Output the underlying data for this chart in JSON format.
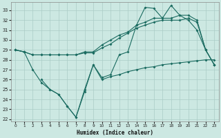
{
  "xlabel": "Humidex (Indice chaleur)",
  "bg_color": "#cce8e2",
  "grid_color": "#aaccc6",
  "line_color": "#1a6b60",
  "xlim": [
    -0.5,
    23.5
  ],
  "ylim": [
    21.8,
    33.8
  ],
  "yticks": [
    22,
    23,
    24,
    25,
    26,
    27,
    28,
    29,
    30,
    31,
    32,
    33
  ],
  "xticks": [
    0,
    1,
    2,
    3,
    4,
    5,
    6,
    7,
    8,
    9,
    10,
    11,
    12,
    13,
    14,
    15,
    16,
    17,
    18,
    19,
    20,
    21,
    22,
    23
  ],
  "series": [
    {
      "x": [
        0,
        1,
        2,
        3,
        4,
        5,
        6,
        7,
        8,
        9,
        10,
        11,
        12,
        13,
        14,
        15,
        16,
        17,
        18,
        19,
        20,
        21,
        22,
        23
      ],
      "y": [
        29.0,
        28.8,
        28.5,
        28.5,
        28.5,
        28.5,
        28.5,
        28.5,
        28.7,
        28.7,
        29.2,
        29.6,
        30.2,
        30.7,
        31.2,
        31.5,
        31.8,
        32.0,
        32.0,
        32.0,
        32.2,
        31.8,
        29.0,
        27.5
      ]
    },
    {
      "x": [
        0,
        1,
        2,
        3,
        4,
        5,
        6,
        7,
        8,
        9,
        10,
        11,
        12,
        13,
        14,
        15,
        16,
        17,
        18,
        19,
        20,
        21,
        22,
        23
      ],
      "y": [
        29.0,
        28.8,
        28.5,
        28.5,
        28.5,
        28.5,
        28.5,
        28.5,
        28.8,
        28.8,
        29.5,
        30.0,
        30.5,
        30.8,
        31.5,
        31.8,
        32.2,
        32.2,
        32.2,
        32.5,
        32.5,
        32.0,
        29.0,
        27.5
      ]
    },
    {
      "x": [
        0,
        1,
        2,
        3,
        4,
        5,
        6,
        7,
        8,
        9,
        10,
        11,
        12,
        13,
        14,
        15,
        16,
        17,
        18,
        19,
        20,
        21,
        22,
        23
      ],
      "y": [
        29.0,
        28.8,
        27.0,
        25.7,
        25.0,
        24.5,
        23.3,
        22.2,
        25.0,
        27.5,
        26.2,
        26.5,
        28.5,
        28.8,
        31.5,
        33.3,
        33.2,
        32.2,
        33.5,
        32.5,
        32.0,
        31.0,
        29.0,
        27.5
      ]
    },
    {
      "x": [
        3,
        4,
        5,
        6,
        7,
        8,
        9,
        10,
        11,
        12,
        13,
        14,
        15,
        16,
        17,
        18,
        19,
        20,
        21,
        22,
        23
      ],
      "y": [
        26.0,
        25.0,
        24.5,
        23.3,
        22.2,
        24.8,
        27.5,
        26.0,
        26.3,
        26.5,
        26.8,
        27.0,
        27.2,
        27.3,
        27.5,
        27.6,
        27.7,
        27.8,
        27.9,
        28.0,
        28.0
      ]
    }
  ]
}
